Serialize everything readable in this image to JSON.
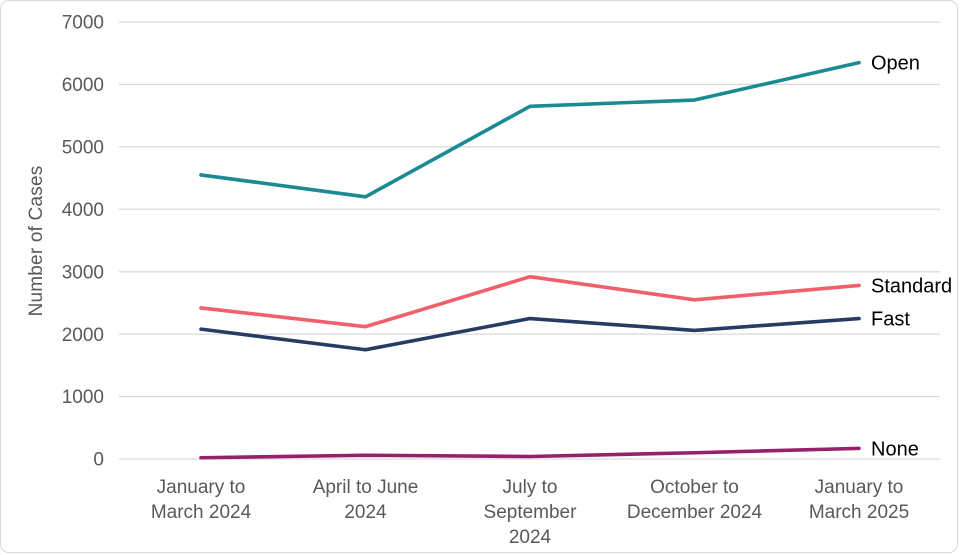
{
  "chart_data": {
    "type": "line",
    "title": "",
    "xlabel": "",
    "ylabel": "Number of Cases",
    "categories": [
      "January to March 2024",
      "April to June 2024",
      "July to September 2024",
      "October to December 2024",
      "January to March 2025"
    ],
    "category_label_lines": [
      [
        "January to",
        "March 2024"
      ],
      [
        "April to June",
        "2024"
      ],
      [
        "July to",
        "September",
        "2024"
      ],
      [
        "October to",
        "December 2024"
      ],
      [
        "January to",
        "March 2025"
      ]
    ],
    "series": [
      {
        "name": "Open",
        "color": "#1B8A93",
        "values": [
          4550,
          4200,
          5650,
          5750,
          6350
        ]
      },
      {
        "name": "Standard",
        "color": "#F1606A",
        "values": [
          2420,
          2120,
          2920,
          2550,
          2780
        ]
      },
      {
        "name": "Fast",
        "color": "#263C62",
        "values": [
          2080,
          1750,
          2250,
          2060,
          2250
        ]
      },
      {
        "name": "None",
        "color": "#96216B",
        "values": [
          20,
          60,
          40,
          100,
          170
        ]
      }
    ],
    "ylim": [
      0,
      7000
    ],
    "ytick_step": 1000,
    "ytick_labels": [
      "0",
      "1000",
      "2000",
      "3000",
      "4000",
      "5000",
      "6000",
      "7000"
    ],
    "grid": true,
    "legend_position": "end-of-line-right-labels",
    "colors": {
      "grid": "#D9D9D9",
      "axis_text": "#595959",
      "series_label_text": "#000000",
      "background": "#FFFFFF",
      "border": "#D9D9D9"
    }
  }
}
